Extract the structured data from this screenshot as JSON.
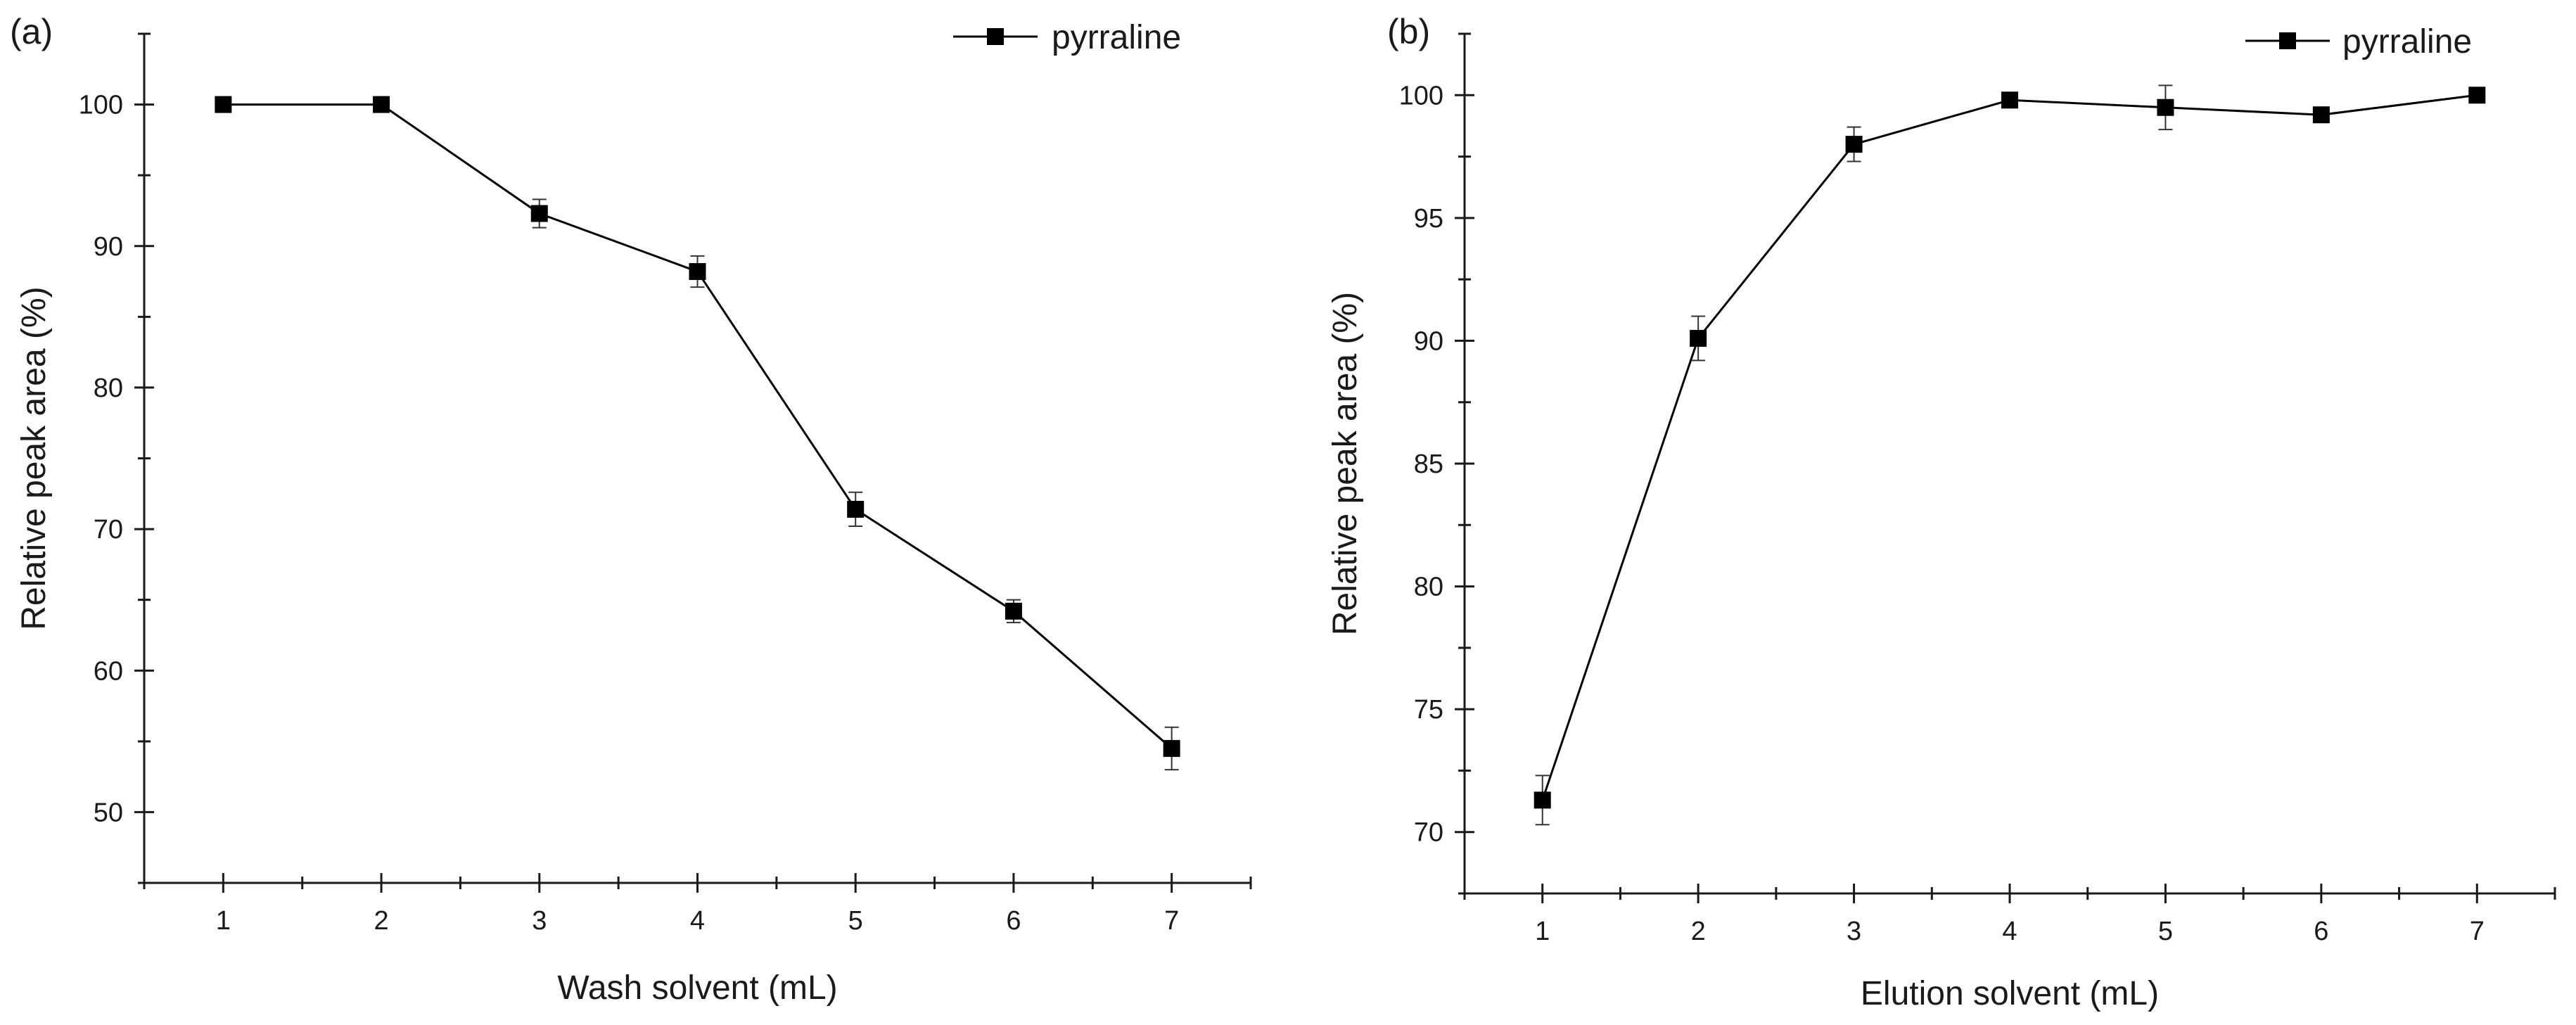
{
  "chart_data": [
    {
      "type": "line",
      "panel_label": "(a)",
      "xlabel": "Wash solvent (mL)",
      "ylabel": "Relative peak area (%)",
      "x": [
        1,
        2,
        3,
        4,
        5,
        6,
        7
      ],
      "x_ticks": [
        "1",
        "2",
        "3",
        "4",
        "5",
        "6",
        "7"
      ],
      "xlim": [
        0.5,
        7.5
      ],
      "ylim": [
        45,
        105
      ],
      "y_ticks": [
        "50",
        "60",
        "70",
        "80",
        "90",
        "100"
      ],
      "y_tick_values": [
        50,
        60,
        70,
        80,
        90,
        100
      ],
      "y_minor_step": 5,
      "series": [
        {
          "name": "pyrraline",
          "marker": "square",
          "color": "#000000",
          "values": [
            100.0,
            100.0,
            92.3,
            88.2,
            71.4,
            64.2,
            54.5
          ],
          "errors": [
            0,
            0,
            1.0,
            1.1,
            1.2,
            0.8,
            1.5
          ]
        }
      ],
      "legend": {
        "position": "top-right",
        "entries": [
          "pyrraline"
        ]
      },
      "grid": false
    },
    {
      "type": "line",
      "panel_label": "(b)",
      "xlabel": "Elution solvent (mL)",
      "ylabel": "Relative peak area (%)",
      "x": [
        1,
        2,
        3,
        4,
        5,
        6,
        7
      ],
      "x_ticks": [
        "1",
        "2",
        "3",
        "4",
        "5",
        "6",
        "7"
      ],
      "xlim": [
        0.5,
        7.5
      ],
      "ylim": [
        67.5,
        102.5
      ],
      "y_ticks": [
        "70",
        "75",
        "80",
        "85",
        "90",
        "95",
        "100"
      ],
      "y_tick_values": [
        70,
        75,
        80,
        85,
        90,
        95,
        100
      ],
      "y_minor_step": 2.5,
      "series": [
        {
          "name": "pyrraline",
          "marker": "square",
          "color": "#000000",
          "values": [
            71.3,
            90.1,
            98.0,
            99.8,
            99.5,
            99.2,
            100.0
          ],
          "errors": [
            1.0,
            0.9,
            0.7,
            0,
            0.9,
            0,
            0
          ]
        }
      ],
      "legend": {
        "position": "top-right",
        "entries": [
          "pyrraline"
        ]
      },
      "grid": false
    }
  ]
}
